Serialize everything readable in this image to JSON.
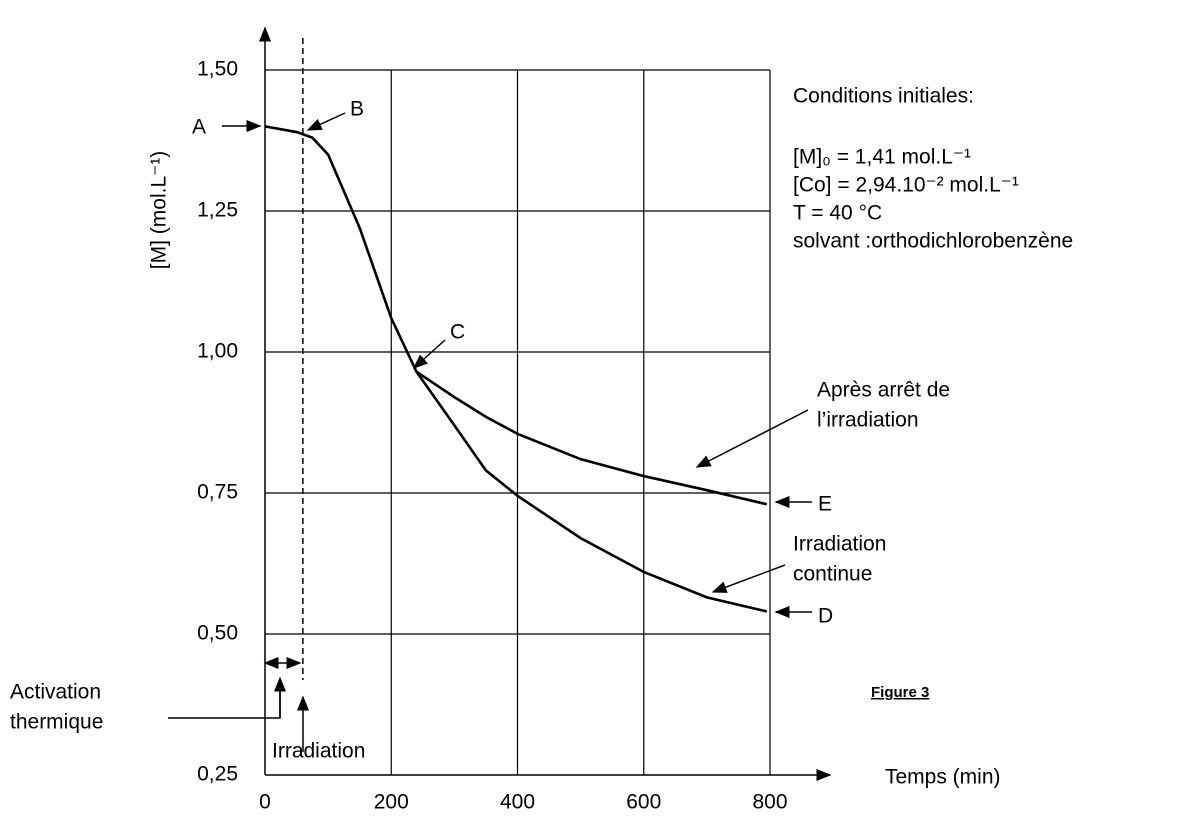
{
  "chart_data": {
    "type": "line",
    "x_label": "Temps  (min)",
    "y_label": "[M]  (mol.L⁻¹)",
    "xlim": [
      0,
      800
    ],
    "ylim": [
      0.25,
      1.5
    ],
    "xticks": [
      0,
      200,
      400,
      600,
      800
    ],
    "yticks": [
      {
        "value": 0.25,
        "label": "0,25"
      },
      {
        "value": 0.5,
        "label": "0,50"
      },
      {
        "value": 0.75,
        "label": "0,75"
      },
      {
        "value": 1.0,
        "label": "1,00"
      },
      {
        "value": 1.25,
        "label": "1,25"
      },
      {
        "value": 1.5,
        "label": "1,50"
      }
    ],
    "grid": true,
    "color": "#000000",
    "series": [
      {
        "name": "Irradiation continue",
        "color": "#000000",
        "x": [
          0,
          50,
          75,
          100,
          150,
          200,
          240,
          300,
          350,
          400,
          500,
          600,
          700,
          795
        ],
        "values": [
          1.4,
          1.39,
          1.38,
          1.35,
          1.22,
          1.06,
          0.965,
          0.87,
          0.79,
          0.745,
          0.67,
          0.61,
          0.565,
          0.54
        ]
      },
      {
        "name": "Après arrêt de l’irradiation",
        "color": "#000000",
        "x": [
          240,
          300,
          350,
          400,
          500,
          600,
          700,
          795
        ],
        "values": [
          0.965,
          0.92,
          0.885,
          0.855,
          0.81,
          0.78,
          0.755,
          0.73
        ]
      }
    ],
    "irradiation_start": 60,
    "annotations": {
      "A": "A",
      "B": "B",
      "C": "C",
      "D": "D",
      "E": "E",
      "conditions": [
        "Conditions initiales:",
        "[M]₀ = 1,41 mol.L⁻¹",
        "[Co] = 2,94.10⁻² mol.L⁻¹",
        "T = 40 °C",
        "solvant :orthodichlorobenzène"
      ],
      "apres": [
        "Après arrêt de",
        "l’irradiation"
      ],
      "continue": [
        "Irradiation",
        "continue"
      ],
      "activation": [
        "Activation",
        "thermique"
      ],
      "irradiation": "Irradiation",
      "figure": "Figure 3"
    }
  }
}
